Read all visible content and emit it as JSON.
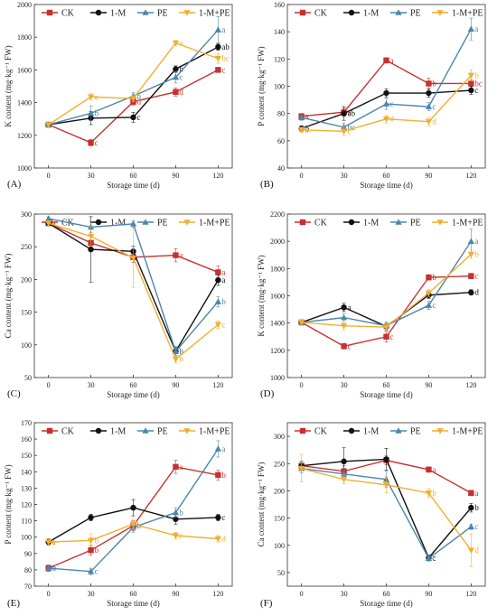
{
  "chart_data": [
    {
      "type": "line",
      "panel_label": "(A)",
      "xlabel": "Storage time (d)",
      "ylabel": "K content (mg·kg⁻¹ FW)",
      "x": [
        0,
        30,
        60,
        90,
        120
      ],
      "xticks": [
        "0",
        "30",
        "60",
        "90",
        "120"
      ],
      "ylim": [
        1000,
        2000
      ],
      "yticks": [
        1000,
        1200,
        1400,
        1600,
        1800,
        2000
      ],
      "legend": [
        "CK",
        "1-M",
        "PE",
        "1-M+PE"
      ],
      "series": [
        {
          "name": "CK",
          "values": [
            1265,
            1155,
            1405,
            1465,
            1600
          ],
          "errors": [
            10,
            20,
            20,
            25,
            15
          ],
          "letters": [
            "",
            "c",
            "d",
            "d",
            "c"
          ]
        },
        {
          "name": "1-M",
          "values": [
            1265,
            1305,
            1310,
            1605,
            1740
          ],
          "errors": [
            10,
            40,
            30,
            20,
            20
          ],
          "letters": [
            "",
            "",
            "c",
            "b",
            "ab"
          ]
        },
        {
          "name": "PE",
          "values": [
            1265,
            1335,
            1440,
            1555,
            1845
          ],
          "errors": [
            15,
            45,
            20,
            35,
            80
          ],
          "letters": [
            "",
            "b",
            "b",
            "c",
            "a"
          ]
        },
        {
          "name": "1-M+PE",
          "values": [
            1265,
            1435,
            1425,
            1765,
            1670
          ],
          "errors": [
            10,
            20,
            20,
            15,
            30
          ],
          "letters": [
            "",
            "a",
            "a",
            "a",
            "bc"
          ]
        }
      ]
    },
    {
      "type": "line",
      "panel_label": "(B)",
      "xlabel": "Storage time (d)",
      "ylabel": "P content (mg·kg⁻¹ FW)",
      "x": [
        0,
        30,
        60,
        90,
        120
      ],
      "xticks": [
        "0",
        "30",
        "60",
        "90",
        "120"
      ],
      "ylim": [
        40,
        160
      ],
      "yticks": [
        40,
        60,
        80,
        100,
        120,
        140,
        160
      ],
      "legend": [
        "CK",
        "1-M",
        "PE",
        "1-M+PE"
      ],
      "series": [
        {
          "name": "CK",
          "values": [
            78,
            81,
            119,
            102,
            102
          ],
          "errors": [
            2,
            3,
            2,
            4,
            3
          ],
          "letters": [
            "a",
            "a",
            "a",
            "b",
            "bc"
          ]
        },
        {
          "name": "1-M",
          "values": [
            69,
            80,
            95,
            95,
            97
          ],
          "errors": [
            2,
            5,
            3,
            3,
            3
          ],
          "letters": [
            "b",
            "ab",
            "",
            "",
            "c"
          ]
        },
        {
          "name": "PE",
          "values": [
            77,
            70,
            87,
            85,
            142
          ],
          "errors": [
            2,
            3,
            4,
            3,
            8
          ],
          "letters": [
            "",
            "bc",
            "c",
            "c",
            "a"
          ]
        },
        {
          "name": "1-M+PE",
          "values": [
            68,
            67,
            76,
            74,
            108
          ],
          "errors": [
            2,
            3,
            3,
            3,
            4
          ],
          "letters": [
            "b",
            "c",
            "d",
            "d",
            "b"
          ]
        }
      ]
    },
    {
      "type": "line",
      "panel_label": "(C)",
      "xlabel": "Storage time (d)",
      "ylabel": "Ca content (mg·kg⁻¹ FW)",
      "x": [
        0,
        30,
        60,
        90,
        120
      ],
      "xticks": [
        "0",
        "30",
        "60",
        "90",
        "120"
      ],
      "ylim": [
        50,
        300
      ],
      "yticks": [
        50,
        100,
        150,
        200,
        250,
        300
      ],
      "legend": [
        "CK",
        "1-M",
        "PE",
        "1-M+PE"
      ],
      "series": [
        {
          "name": "CK",
          "values": [
            286,
            256,
            234,
            237,
            211
          ],
          "errors": [
            4,
            10,
            8,
            10,
            10
          ],
          "letters": [
            "a",
            "",
            "",
            "a",
            "a"
          ]
        },
        {
          "name": "1-M",
          "values": [
            286,
            246,
            243,
            90,
            199
          ],
          "errors": [
            4,
            50,
            8,
            6,
            8
          ],
          "letters": [
            "",
            "",
            "",
            "b",
            "a"
          ]
        },
        {
          "name": "PE",
          "values": [
            293,
            280,
            285,
            90,
            166
          ],
          "errors": [
            3,
            8,
            5,
            8,
            8
          ],
          "letters": [
            "",
            "",
            "",
            "b",
            "b"
          ]
        },
        {
          "name": "1-M+PE",
          "values": [
            286,
            266,
            233,
            78,
            131
          ],
          "errors": [
            4,
            15,
            45,
            6,
            6
          ],
          "letters": [
            "",
            "",
            "",
            "b",
            "c"
          ]
        }
      ]
    },
    {
      "type": "line",
      "panel_label": "(D)",
      "xlabel": "Storage time (d)",
      "ylabel": "K content (mg·kg⁻¹ FW)",
      "x": [
        0,
        30,
        60,
        90,
        120
      ],
      "xticks": [
        "0",
        "30",
        "60",
        "90",
        "120"
      ],
      "ylim": [
        1000,
        2200
      ],
      "yticks": [
        1000,
        1200,
        1400,
        1600,
        1800,
        2000,
        2200
      ],
      "legend": [
        "CK",
        "1-M",
        "PE",
        "1-M+PE"
      ],
      "series": [
        {
          "name": "CK",
          "values": [
            1405,
            1230,
            1300,
            1735,
            1745
          ],
          "errors": [
            20,
            20,
            40,
            20,
            20
          ],
          "letters": [
            "",
            "c",
            "c",
            "b",
            "c"
          ]
        },
        {
          "name": "1-M",
          "values": [
            1405,
            1515,
            1375,
            1605,
            1625
          ],
          "errors": [
            20,
            30,
            30,
            25,
            20
          ],
          "letters": [
            "",
            "a",
            "",
            "",
            "d"
          ]
        },
        {
          "name": "PE",
          "values": [
            1405,
            1440,
            1380,
            1530,
            2000
          ],
          "errors": [
            20,
            30,
            25,
            30,
            90
          ],
          "letters": [
            "",
            "",
            "",
            "c",
            "a"
          ]
        },
        {
          "name": "1-M+PE",
          "values": [
            1405,
            1380,
            1370,
            1620,
            1905
          ],
          "errors": [
            20,
            30,
            30,
            25,
            30
          ],
          "letters": [
            "",
            "",
            "",
            "",
            "b"
          ]
        }
      ]
    },
    {
      "type": "line",
      "panel_label": "(E)",
      "xlabel": "Storage time (d)",
      "ylabel": "P content (mg·kg⁻¹ FW)",
      "x": [
        0,
        30,
        60,
        90,
        120
      ],
      "xticks": [
        "0",
        "30",
        "60",
        "90",
        "120"
      ],
      "ylim": [
        70,
        170
      ],
      "yticks": [
        70,
        80,
        90,
        100,
        110,
        120,
        130,
        140,
        150,
        160,
        170
      ],
      "legend": [
        "CK",
        "1-M",
        "PE",
        "1-M+PE"
      ],
      "series": [
        {
          "name": "CK",
          "values": [
            81,
            92,
            107,
            143,
            138
          ],
          "errors": [
            2,
            3,
            3,
            4,
            3
          ],
          "letters": [
            "b",
            "b",
            "b",
            "a",
            "b"
          ]
        },
        {
          "name": "1-M",
          "values": [
            97,
            112,
            118,
            111,
            112
          ],
          "errors": [
            2,
            2,
            5,
            3,
            2
          ],
          "letters": [
            "a",
            "",
            "",
            "",
            "c"
          ]
        },
        {
          "name": "PE",
          "values": [
            81,
            79,
            106,
            115,
            154
          ],
          "errors": [
            2,
            2,
            3,
            3,
            5
          ],
          "letters": [
            "b",
            "c",
            "",
            "b",
            "a"
          ]
        },
        {
          "name": "1-M+PE",
          "values": [
            97,
            98,
            108,
            101,
            99
          ],
          "errors": [
            2,
            4,
            3,
            2,
            2
          ],
          "letters": [
            "a",
            "b",
            "",
            "c",
            "d"
          ]
        }
      ]
    },
    {
      "type": "line",
      "panel_label": "(F)",
      "xlabel": "Storage time (d)",
      "ylabel": "Ca content (mg·kg⁻¹ FW)",
      "x": [
        0,
        30,
        60,
        90,
        120
      ],
      "xticks": [
        "0",
        "30",
        "60",
        "90",
        "120"
      ],
      "ylim": [
        25,
        325
      ],
      "yticks": [
        50,
        100,
        150,
        200,
        250,
        300
      ],
      "legend": [
        "CK",
        "1-M",
        "PE",
        "1-M+PE"
      ],
      "series": [
        {
          "name": "CK",
          "values": [
            246,
            236,
            256,
            239,
            196
          ],
          "errors": [
            8,
            10,
            8,
            5,
            5
          ],
          "letters": [
            "",
            "",
            "",
            "a",
            "a"
          ]
        },
        {
          "name": "1-M",
          "values": [
            246,
            254,
            258,
            77,
            169
          ],
          "errors": [
            8,
            25,
            20,
            5,
            8
          ],
          "letters": [
            "",
            "",
            "",
            "c",
            "b"
          ]
        },
        {
          "name": "PE",
          "values": [
            241,
            231,
            221,
            76,
            134
          ],
          "errors": [
            8,
            10,
            15,
            5,
            5
          ],
          "letters": [
            "",
            "",
            "",
            "c",
            "c"
          ]
        },
        {
          "name": "1-M+PE",
          "values": [
            241,
            221,
            211,
            196,
            91
          ],
          "errors": [
            25,
            8,
            15,
            8,
            30
          ],
          "letters": [
            "",
            "",
            "",
            "b",
            "d"
          ]
        }
      ]
    }
  ],
  "style": {
    "colors": {
      "CK": "#c8302f",
      "1-M": "#111111",
      "PE": "#4a86ad",
      "1-M+PE": "#f2ae2f"
    },
    "markers": {
      "CK": "square",
      "1-M": "circle",
      "PE": "triangle-up",
      "1-M+PE": "triangle-down"
    }
  }
}
